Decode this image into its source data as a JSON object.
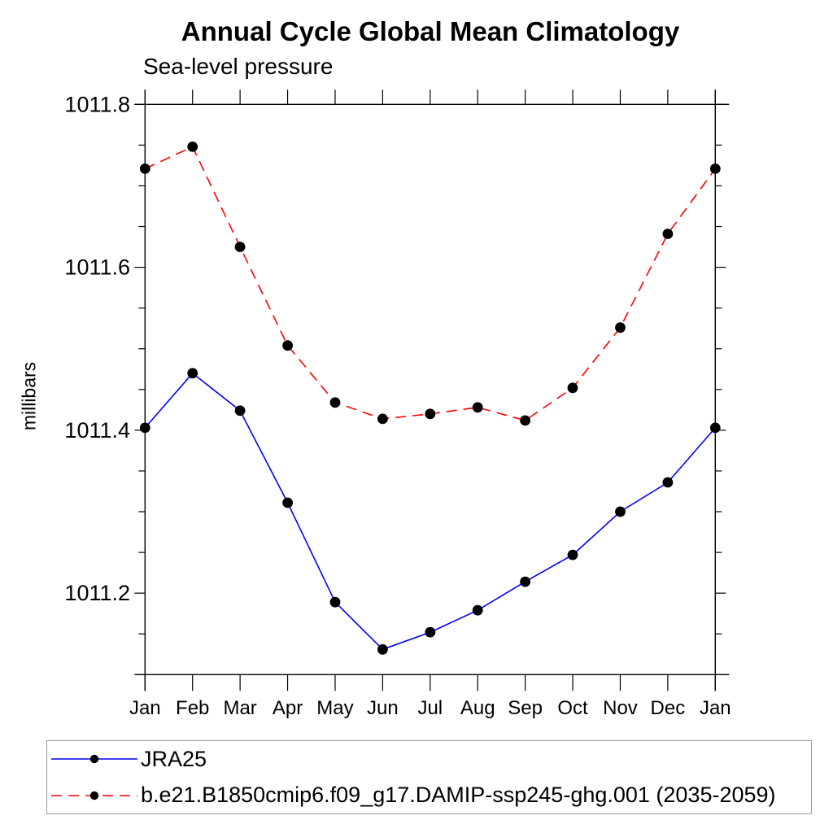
{
  "page": {
    "title": "Annual Cycle Global Mean Climatology",
    "subtitle": "Sea-level pressure"
  },
  "colors": {
    "series_jra25": "#0000ff",
    "series_model": "#ff0000",
    "marker": "#000000",
    "axis": "#000000",
    "legend_border": "#9a9a9a",
    "background": "#ffffff"
  },
  "chart_data": {
    "type": "line",
    "title": "Annual Cycle Global Mean Climatology",
    "subtitle": "Sea-level pressure",
    "xlabel": "",
    "ylabel": "millibars",
    "categories": [
      "Jan",
      "Feb",
      "Mar",
      "Apr",
      "May",
      "Jun",
      "Jul",
      "Aug",
      "Sep",
      "Oct",
      "Nov",
      "Dec",
      "Jan"
    ],
    "ylim": [
      1011.1,
      1011.8
    ],
    "yticks_major": [
      1011.2,
      1011.4,
      1011.6,
      1011.8
    ],
    "ytick_labels": [
      "1011.2",
      "1011.4",
      "1011.6",
      "1011.8"
    ],
    "ytick_minor_step": 0.05,
    "grid": false,
    "legend_position": "bottom-left-box",
    "series": [
      {
        "name": "JRA25",
        "color": "#0000ff",
        "line_style": "solid",
        "marker": "filled-circle",
        "marker_color": "#000000",
        "values": [
          1011.403,
          1011.47,
          1011.424,
          1011.311,
          1011.189,
          1011.131,
          1011.152,
          1011.179,
          1011.214,
          1011.247,
          1011.3,
          1011.336,
          1011.403
        ]
      },
      {
        "name": "b.e21.B1850cmip6.f09_g17.DAMIP-ssp245-ghg.001 (2035-2059)",
        "color": "#ff0000",
        "line_style": "dashed",
        "marker": "filled-circle",
        "marker_color": "#000000",
        "values": [
          1011.721,
          1011.748,
          1011.625,
          1011.504,
          1011.434,
          1011.414,
          1011.42,
          1011.428,
          1011.412,
          1011.452,
          1011.526,
          1011.641,
          1011.721
        ]
      }
    ]
  }
}
